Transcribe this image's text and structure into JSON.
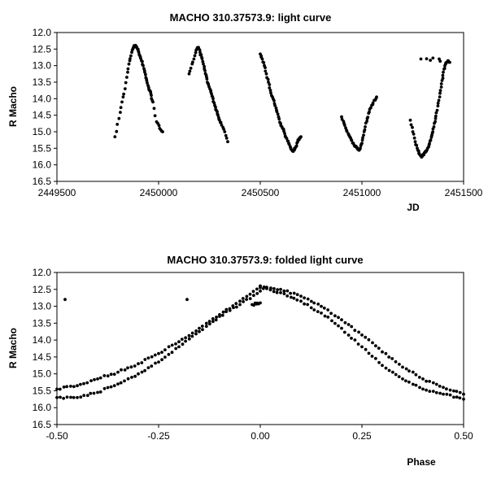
{
  "chart_data": [
    {
      "type": "scatter",
      "title": "MACHO 310.37573.9: light curve",
      "xlabel": "JD",
      "ylabel": "R Macho",
      "xlim": [
        2449500,
        2451500
      ],
      "ylim": [
        12.0,
        16.5
      ],
      "y_inverted": true,
      "xticks": [
        "2449500",
        "2450000",
        "2450500",
        "2451000",
        "2451500"
      ],
      "yticks": [
        "12.0",
        "12.5",
        "13.0",
        "13.5",
        "14.0",
        "14.5",
        "15.0",
        "15.5",
        "16.0",
        "16.5"
      ],
      "grid": false,
      "legend": "none",
      "marker_color": "#000000",
      "segments": [
        {
          "x": [
            2449785,
            2449805,
            2449820,
            2449835,
            2449848,
            2449858,
            2449868,
            2449876,
            2449884,
            2449892,
            2449900,
            2449908,
            2449916,
            2449924,
            2449932,
            2449940,
            2449948,
            2449956,
            2449964,
            2449972,
            2449990,
            2450005,
            2450020
          ],
          "y": [
            15.15,
            14.6,
            14.1,
            13.7,
            13.2,
            12.85,
            12.6,
            12.45,
            12.4,
            12.45,
            12.55,
            12.7,
            12.85,
            13.0,
            13.2,
            13.4,
            13.6,
            13.75,
            13.9,
            14.1,
            14.7,
            14.9,
            15.0
          ]
        },
        {
          "x": [
            2450150,
            2450165,
            2450178,
            2450188,
            2450196,
            2450204,
            2450212,
            2450220,
            2450228,
            2450236,
            2450244,
            2450252,
            2450260,
            2450268,
            2450276,
            2450284,
            2450292,
            2450300,
            2450310,
            2450325,
            2450340
          ],
          "y": [
            13.25,
            12.95,
            12.7,
            12.5,
            12.45,
            12.6,
            12.75,
            12.95,
            13.15,
            13.35,
            13.55,
            13.7,
            13.85,
            14.0,
            14.2,
            14.35,
            14.5,
            14.65,
            14.8,
            15.0,
            15.3
          ]
        },
        {
          "x": [
            2450500,
            2450510,
            2450520,
            2450530,
            2450540,
            2450550,
            2450560,
            2450570,
            2450580,
            2450590,
            2450600,
            2450610,
            2450620,
            2450630,
            2450640,
            2450650,
            2450660,
            2450668,
            2450676,
            2450684,
            2450692,
            2450700
          ],
          "y": [
            12.65,
            12.8,
            13.0,
            13.25,
            13.5,
            13.75,
            13.95,
            14.15,
            14.35,
            14.55,
            14.75,
            14.9,
            15.05,
            15.2,
            15.35,
            15.5,
            15.58,
            15.55,
            15.45,
            15.3,
            15.2,
            15.15
          ]
        },
        {
          "x": [
            2450900,
            2450912,
            2450924,
            2450936,
            2450948,
            2450958,
            2450968,
            2450976,
            2450984,
            2450992,
            2451000,
            2451008,
            2451016,
            2451026,
            2451036,
            2451048,
            2451060,
            2451072
          ],
          "y": [
            14.55,
            14.75,
            14.95,
            15.1,
            15.25,
            15.35,
            15.45,
            15.5,
            15.55,
            15.5,
            15.35,
            15.1,
            14.85,
            14.6,
            14.4,
            14.2,
            14.05,
            13.95
          ]
        },
        {
          "x": [
            2451238,
            2451250,
            2451262,
            2451272,
            2451280,
            2451288,
            2451296,
            2451304,
            2451312,
            2451320,
            2451330,
            2451338,
            2451346,
            2451354,
            2451362,
            2451370,
            2451378,
            2451386,
            2451394,
            2451400,
            2451408,
            2451416,
            2451424,
            2451432,
            2451290,
            2451380
          ],
          "y": [
            14.65,
            15.0,
            15.3,
            15.5,
            15.65,
            15.72,
            15.75,
            15.7,
            15.62,
            15.55,
            15.4,
            15.25,
            15.05,
            14.85,
            14.6,
            14.35,
            14.05,
            13.75,
            13.45,
            13.2,
            13.0,
            12.9,
            12.85,
            12.9,
            12.8,
            12.8
          ]
        }
      ]
    },
    {
      "type": "scatter",
      "title": "MACHO 310.37573.9: folded light curve",
      "xlabel": "Phase",
      "ylabel": "R Macho",
      "xlim": [
        -0.5,
        0.5
      ],
      "ylim": [
        12.0,
        16.5
      ],
      "y_inverted": true,
      "xticks": [
        "-0.50",
        "-0.25",
        "0.00",
        "0.25",
        "0.50"
      ],
      "yticks": [
        "12.0",
        "12.5",
        "13.0",
        "13.5",
        "14.0",
        "14.5",
        "15.0",
        "15.5",
        "16.0",
        "16.5"
      ],
      "grid": false,
      "legend": "none",
      "marker_color": "#000000",
      "branches": [
        {
          "x": [
            -0.5,
            -0.45,
            -0.4,
            -0.35,
            -0.3,
            -0.25,
            -0.2,
            -0.15,
            -0.1,
            -0.05,
            0.0
          ],
          "y": [
            15.45,
            15.35,
            15.15,
            14.95,
            14.7,
            14.4,
            14.05,
            13.65,
            13.25,
            12.85,
            12.4
          ]
        },
        {
          "x": [
            -0.5,
            -0.45,
            -0.4,
            -0.35,
            -0.3,
            -0.25,
            -0.2,
            -0.15,
            -0.1,
            -0.05,
            0.0
          ],
          "y": [
            15.7,
            15.7,
            15.55,
            15.3,
            15.0,
            14.65,
            14.2,
            13.75,
            13.3,
            12.95,
            12.55
          ]
        },
        {
          "x": [
            0.0,
            0.05,
            0.1,
            0.15,
            0.2,
            0.25,
            0.3,
            0.35,
            0.4,
            0.45,
            0.5
          ],
          "y": [
            12.4,
            12.5,
            12.7,
            13.0,
            13.4,
            13.85,
            14.35,
            14.8,
            15.15,
            15.4,
            15.6
          ]
        },
        {
          "x": [
            0.0,
            0.05,
            0.1,
            0.15,
            0.2,
            0.25,
            0.3,
            0.35,
            0.4,
            0.45,
            0.5
          ],
          "y": [
            12.45,
            12.6,
            12.85,
            13.2,
            13.65,
            14.2,
            14.75,
            15.15,
            15.45,
            15.6,
            15.75
          ]
        },
        {
          "x": [
            -0.48,
            -0.18,
            -0.02,
            0.0
          ],
          "y": [
            12.8,
            12.8,
            12.95,
            12.9
          ]
        }
      ]
    }
  ]
}
